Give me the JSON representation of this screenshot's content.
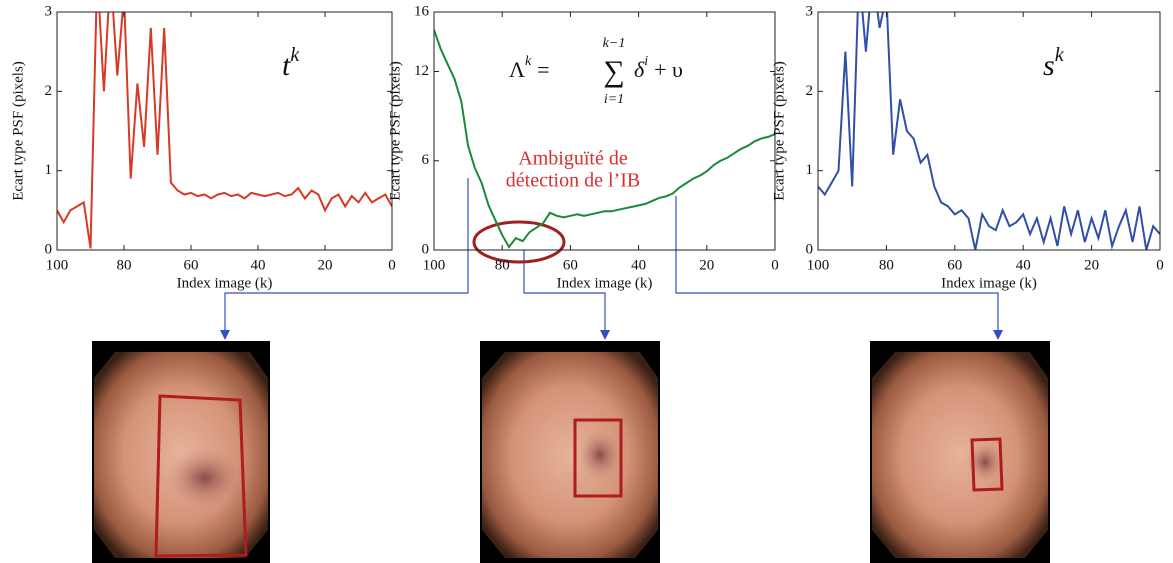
{
  "chart_data": [
    {
      "type": "line",
      "xlabel": "Index image (k)",
      "ylabel": "Ecart type PSF (pixels)",
      "annotation": "t",
      "annotation_sup": "k",
      "xlim": [
        100,
        0
      ],
      "ylim": [
        0,
        3
      ],
      "xticks": [
        100,
        80,
        60,
        40,
        20,
        0
      ],
      "yticks": [
        0,
        1,
        2,
        3
      ],
      "color": "#d63a24",
      "x": [
        100,
        98,
        96,
        94,
        92,
        90,
        88,
        86,
        84,
        82,
        80,
        78,
        76,
        74,
        72,
        70,
        68,
        66,
        64,
        62,
        60,
        58,
        56,
        54,
        52,
        50,
        48,
        46,
        44,
        42,
        40,
        38,
        36,
        34,
        32,
        30,
        28,
        26,
        24,
        22,
        20,
        18,
        16,
        14,
        12,
        10,
        8,
        6,
        4,
        2,
        0
      ],
      "values": [
        0.5,
        0.35,
        0.5,
        0.55,
        0.6,
        0.02,
        3.5,
        2.0,
        3.5,
        2.2,
        3.2,
        0.9,
        2.1,
        1.3,
        2.8,
        1.2,
        2.8,
        0.85,
        0.75,
        0.7,
        0.72,
        0.68,
        0.7,
        0.65,
        0.7,
        0.72,
        0.68,
        0.7,
        0.65,
        0.72,
        0.7,
        0.68,
        0.7,
        0.72,
        0.68,
        0.7,
        0.78,
        0.65,
        0.75,
        0.7,
        0.5,
        0.65,
        0.7,
        0.55,
        0.68,
        0.6,
        0.72,
        0.6,
        0.65,
        0.7,
        0.55
      ]
    },
    {
      "type": "line",
      "xlabel": "Index image (k)",
      "ylabel": "Ecart type PSF (pixels)",
      "formula": {
        "lhs": "Λ",
        "lhs_sup": "k",
        "eq": "=",
        "sum": "∑",
        "sum_top": "k−1",
        "sum_bottom": "i=1",
        "term": "δ",
        "term_sup": "i",
        "rest": "+ υ"
      },
      "note": [
        "Ambiguïté de",
        "détection de l’IB"
      ],
      "note_color": "#d83030",
      "xlim": [
        100,
        0
      ],
      "ylim": [
        0,
        16
      ],
      "xticks": [
        100,
        80,
        60,
        40,
        20,
        0
      ],
      "yticks": [
        0,
        6,
        12,
        16
      ],
      "color": "#1a8a3a",
      "x": [
        100,
        98,
        96,
        94,
        92,
        90,
        88,
        86,
        84,
        82,
        80,
        78,
        76,
        74,
        72,
        70,
        68,
        66,
        64,
        62,
        60,
        58,
        56,
        54,
        52,
        50,
        48,
        46,
        44,
        42,
        40,
        38,
        36,
        34,
        32,
        30,
        28,
        26,
        24,
        22,
        20,
        18,
        16,
        14,
        12,
        10,
        8,
        6,
        4,
        2,
        0
      ],
      "values": [
        14.8,
        13.5,
        12.5,
        11.5,
        10,
        7,
        5.5,
        4.5,
        3,
        2,
        1,
        0.2,
        0.8,
        0.6,
        1.2,
        1.5,
        1.8,
        2.5,
        2.3,
        2.2,
        2.3,
        2.4,
        2.3,
        2.4,
        2.5,
        2.6,
        2.6,
        2.7,
        2.8,
        2.9,
        3,
        3.1,
        3.3,
        3.5,
        3.6,
        3.8,
        4.2,
        4.5,
        4.8,
        5,
        5.3,
        5.7,
        6,
        6.2,
        6.5,
        6.8,
        7,
        7.3,
        7.5,
        7.6,
        7.8
      ]
    },
    {
      "type": "line",
      "xlabel": "Index image (k)",
      "ylabel": "Ecart type PSF (pixels)",
      "annotation": "s",
      "annotation_sup": "k",
      "xlim": [
        100,
        0
      ],
      "ylim": [
        0,
        3
      ],
      "xticks": [
        100,
        80,
        60,
        40,
        20,
        0
      ],
      "yticks": [
        0,
        1,
        2,
        3
      ],
      "color": "#3050a8",
      "x": [
        100,
        98,
        96,
        94,
        92,
        90,
        88,
        86,
        84,
        82,
        80,
        78,
        76,
        74,
        72,
        70,
        68,
        66,
        64,
        62,
        60,
        58,
        56,
        54,
        52,
        50,
        48,
        46,
        44,
        42,
        40,
        38,
        36,
        34,
        32,
        30,
        28,
        26,
        24,
        22,
        20,
        18,
        16,
        14,
        12,
        10,
        8,
        6,
        4,
        2,
        0
      ],
      "values": [
        0.8,
        0.7,
        0.85,
        1.0,
        2.5,
        0.8,
        3.5,
        2.5,
        3.5,
        2.8,
        3.2,
        1.2,
        1.9,
        1.5,
        1.4,
        1.1,
        1.2,
        0.8,
        0.6,
        0.55,
        0.45,
        0.5,
        0.4,
        0.0,
        0.45,
        0.3,
        0.25,
        0.5,
        0.3,
        0.35,
        0.45,
        0.2,
        0.4,
        0.1,
        0.4,
        0.05,
        0.55,
        0.2,
        0.5,
        0.1,
        0.4,
        0.15,
        0.5,
        0.05,
        0.3,
        0.5,
        0.1,
        0.55,
        0,
        0.3,
        0.2
      ]
    }
  ]
}
